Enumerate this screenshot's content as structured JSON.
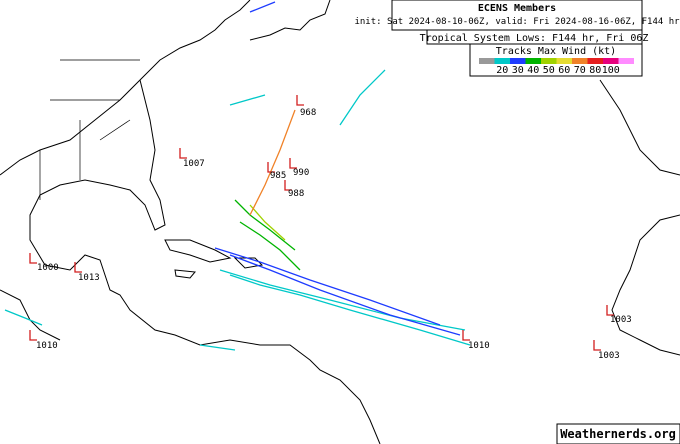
{
  "header": {
    "title": "ECENS Members",
    "init": "init: Sat 2024-08-10-06Z, valid: Fri 2024-08-16-06Z, F144 hr",
    "lows_title": "Tropical System Lows: F144 hr, Fri 06Z"
  },
  "legend": {
    "title": "Tracks Max Wind (kt)",
    "colors": [
      "#999999",
      "#00c8c8",
      "#1e3cff",
      "#00b400",
      "#a0d200",
      "#e6dc32",
      "#f08228",
      "#e61e1e",
      "#e6007d",
      "#ff8cff"
    ],
    "ticks": [
      20,
      30,
      40,
      50,
      60,
      70,
      80,
      100
    ]
  },
  "lows": [
    968,
    1007,
    990,
    985,
    988,
    1010,
    1003,
    1010,
    1003,
    1000,
    1013
  ],
  "credit": "Weathernerds.org"
}
